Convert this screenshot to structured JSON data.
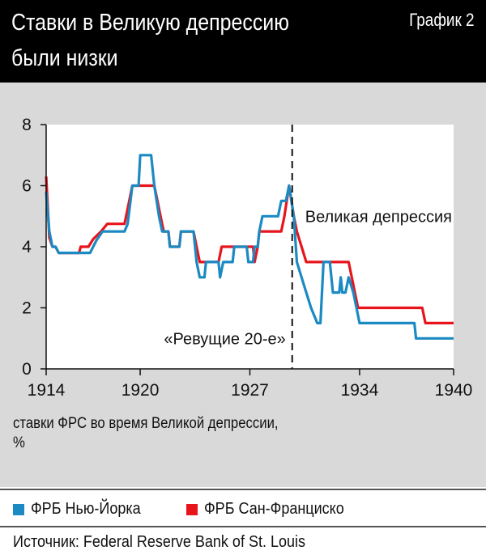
{
  "header": {
    "title_line1": "Ставки в Великую депрессию",
    "title_line2": "были низки",
    "figure_number": "График 2"
  },
  "subtitle_line1": "ставки ФРС во время Великой депрессии,",
  "subtitle_line2": "%",
  "legend": [
    {
      "label": "ФРБ Нью-Йорка",
      "color": "#1b8ac3"
    },
    {
      "label": "ФРБ Сан-Франциско",
      "color": "#e8141c"
    }
  ],
  "source": "Источник: Federal Reserve Bank of St. Louis",
  "colors": {
    "header_bg": "#000000",
    "panel_bg": "#d9d9d9",
    "plot_bg": "#ffffff"
  },
  "chart_data": {
    "type": "line",
    "xlim": [
      1914,
      1940
    ],
    "ylim": [
      0,
      8
    ],
    "xticks": [
      1914,
      1920,
      1927,
      1934,
      1940
    ],
    "yticks": [
      0,
      2,
      4,
      6,
      8
    ],
    "grid": false,
    "legend_position": "bottom",
    "annotations": [
      {
        "text": "Великая депрессия",
        "x": 1929.7,
        "y": 5
      },
      {
        "text": "«Ревущие 20-е»",
        "x": 1929.7,
        "y": 1
      }
    ],
    "vline": {
      "x": 1929.7,
      "style": "dashed"
    },
    "series": [
      {
        "name": "ФРБ Нью-Йорка",
        "color": "#1b8ac3",
        "points": [
          [
            1914.0,
            5.8
          ],
          [
            1914.2,
            4.5
          ],
          [
            1914.4,
            4.0
          ],
          [
            1914.6,
            4.0
          ],
          [
            1914.8,
            3.8
          ],
          [
            1915.5,
            3.8
          ],
          [
            1916.8,
            3.8
          ],
          [
            1917.2,
            4.2
          ],
          [
            1917.6,
            4.5
          ],
          [
            1919.0,
            4.5
          ],
          [
            1919.2,
            4.75
          ],
          [
            1919.5,
            6.0
          ],
          [
            1919.9,
            6.0
          ],
          [
            1920.0,
            7.0
          ],
          [
            1920.7,
            7.0
          ],
          [
            1920.9,
            6.0
          ],
          [
            1921.2,
            5.0
          ],
          [
            1921.4,
            4.5
          ],
          [
            1921.8,
            4.5
          ],
          [
            1921.9,
            4.0
          ],
          [
            1922.5,
            4.0
          ],
          [
            1922.6,
            4.5
          ],
          [
            1923.4,
            4.5
          ],
          [
            1923.6,
            3.5
          ],
          [
            1923.8,
            3.0
          ],
          [
            1924.1,
            3.0
          ],
          [
            1924.2,
            3.5
          ],
          [
            1925.0,
            3.5
          ],
          [
            1925.1,
            3.0
          ],
          [
            1925.3,
            3.5
          ],
          [
            1925.9,
            3.5
          ],
          [
            1926.0,
            4.0
          ],
          [
            1926.8,
            4.0
          ],
          [
            1926.9,
            3.5
          ],
          [
            1927.2,
            3.5
          ],
          [
            1927.3,
            4.0
          ],
          [
            1927.5,
            4.0
          ],
          [
            1927.6,
            4.5
          ],
          [
            1927.8,
            5.0
          ],
          [
            1928.8,
            5.0
          ],
          [
            1929.0,
            5.5
          ],
          [
            1929.3,
            5.5
          ],
          [
            1929.5,
            6.0
          ],
          [
            1929.8,
            5.0
          ],
          [
            1930.0,
            3.5
          ],
          [
            1930.3,
            3.0
          ],
          [
            1930.6,
            2.5
          ],
          [
            1930.9,
            2.0
          ],
          [
            1931.3,
            1.5
          ],
          [
            1931.5,
            1.5
          ],
          [
            1931.7,
            3.5
          ],
          [
            1932.1,
            3.5
          ],
          [
            1932.2,
            3.0
          ],
          [
            1932.3,
            2.5
          ],
          [
            1932.7,
            2.5
          ],
          [
            1932.8,
            3.0
          ],
          [
            1932.9,
            2.5
          ],
          [
            1933.1,
            2.5
          ],
          [
            1933.3,
            3.0
          ],
          [
            1933.6,
            2.5
          ],
          [
            1933.8,
            2.0
          ],
          [
            1934.0,
            1.5
          ],
          [
            1937.5,
            1.5
          ],
          [
            1937.6,
            1.0
          ],
          [
            1940.0,
            1.0
          ]
        ]
      },
      {
        "name": "ФРБ Сан-Франциско",
        "color": "#e8141c",
        "points": [
          [
            1914.0,
            6.3
          ],
          [
            1914.2,
            4.3
          ],
          [
            1914.4,
            4.0
          ],
          [
            1914.6,
            4.0
          ],
          [
            1914.8,
            3.8
          ],
          [
            1915.5,
            3.8
          ],
          [
            1916.1,
            3.8
          ],
          [
            1916.2,
            4.0
          ],
          [
            1916.7,
            4.0
          ],
          [
            1917.0,
            4.25
          ],
          [
            1917.5,
            4.5
          ],
          [
            1917.9,
            4.75
          ],
          [
            1919.0,
            4.75
          ],
          [
            1919.1,
            5.0
          ],
          [
            1919.5,
            6.0
          ],
          [
            1920.0,
            6.0
          ],
          [
            1920.9,
            6.0
          ],
          [
            1921.1,
            5.5
          ],
          [
            1921.3,
            5.0
          ],
          [
            1921.5,
            4.5
          ],
          [
            1921.8,
            4.5
          ],
          [
            1921.9,
            4.0
          ],
          [
            1922.5,
            4.0
          ],
          [
            1922.6,
            4.5
          ],
          [
            1923.4,
            4.5
          ],
          [
            1923.6,
            4.0
          ],
          [
            1923.8,
            3.5
          ],
          [
            1925.0,
            3.5
          ],
          [
            1925.2,
            4.0
          ],
          [
            1927.2,
            4.0
          ],
          [
            1927.3,
            3.5
          ],
          [
            1927.5,
            4.0
          ],
          [
            1927.6,
            4.5
          ],
          [
            1928.2,
            4.5
          ],
          [
            1928.3,
            4.5
          ],
          [
            1929.0,
            4.5
          ],
          [
            1929.2,
            5.0
          ],
          [
            1929.5,
            6.0
          ],
          [
            1929.8,
            5.0
          ],
          [
            1930.0,
            4.5
          ],
          [
            1930.3,
            4.0
          ],
          [
            1930.6,
            3.5
          ],
          [
            1931.5,
            3.5
          ],
          [
            1931.6,
            3.5
          ],
          [
            1933.3,
            3.5
          ],
          [
            1933.5,
            3.0
          ],
          [
            1933.7,
            2.5
          ],
          [
            1933.9,
            2.0
          ],
          [
            1938.0,
            2.0
          ],
          [
            1938.2,
            1.5
          ],
          [
            1940.0,
            1.5
          ]
        ]
      }
    ]
  }
}
